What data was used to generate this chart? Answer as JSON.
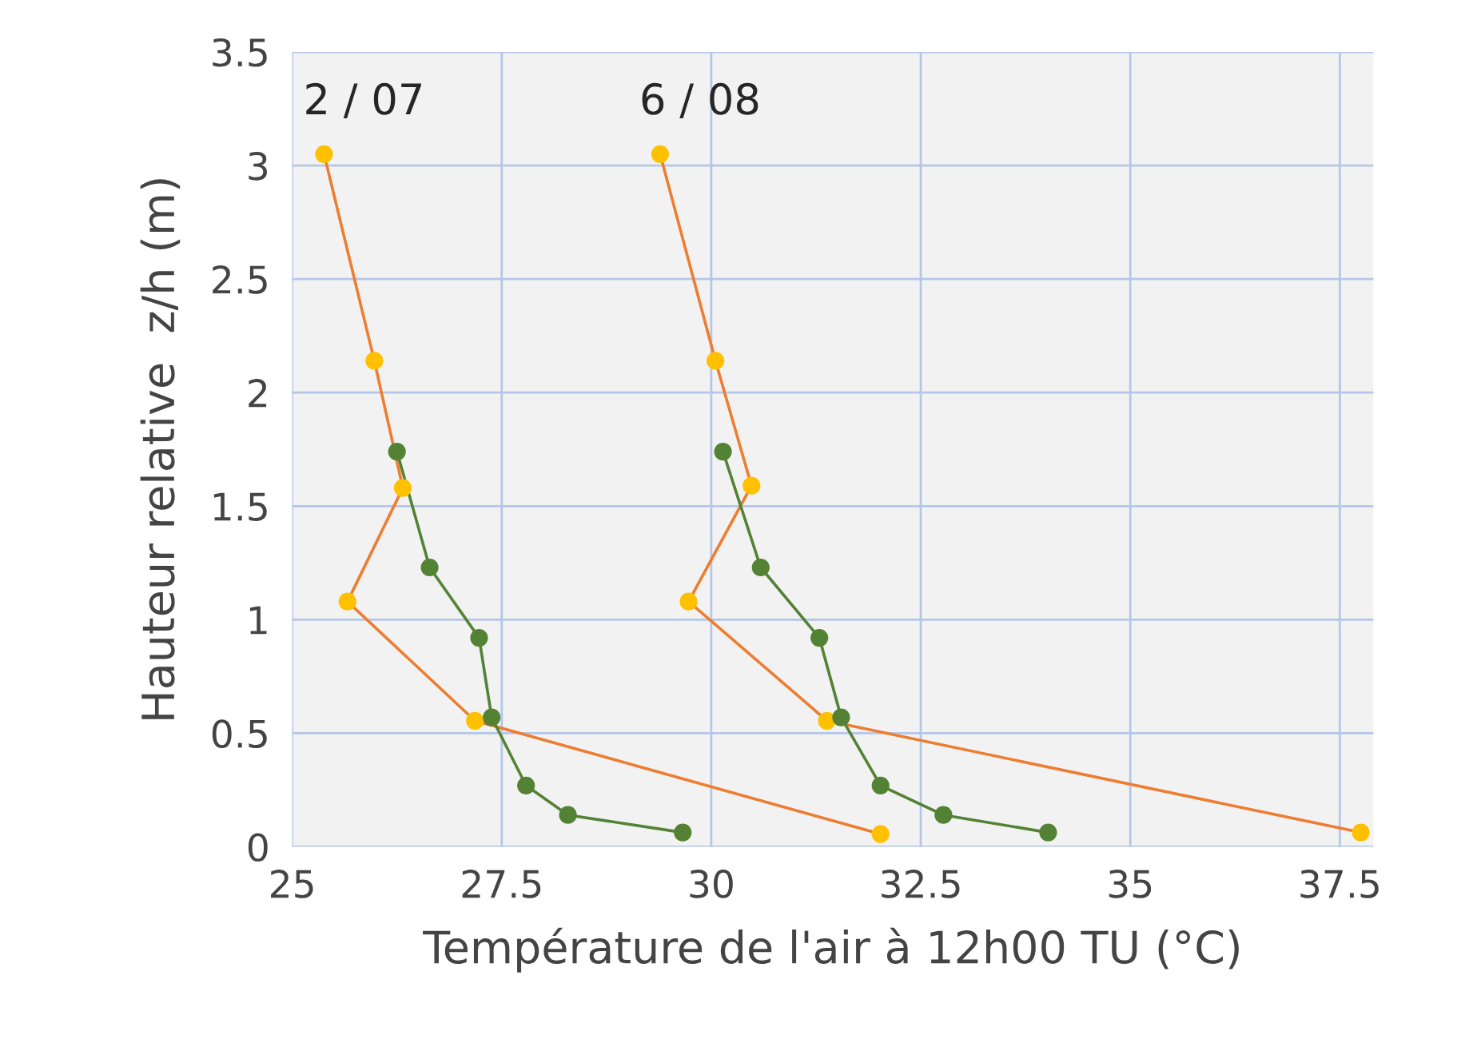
{
  "chart_data": {
    "type": "line",
    "xlabel": "Température de l'air à 12h00 TU (°C)",
    "ylabel": "Hauteur relative  z/h (m)",
    "xlim": [
      25,
      37.9
    ],
    "xticks": [
      25,
      27.5,
      30,
      32.5,
      35,
      37.5
    ],
    "ylim": [
      0,
      3.5
    ],
    "yticks": [
      0,
      0.5,
      1,
      1.5,
      2,
      2.5,
      3,
      3.5
    ],
    "grid": true,
    "marker": "circle",
    "series": [
      {
        "color": "#ed7d31",
        "colors": [
          "#ffc000",
          "#ffc000",
          "#ffc000",
          "#ffc000",
          "#ffc000",
          "#ffc000"
        ],
        "x": [
          25.38,
          25.98,
          26.32,
          25.66,
          27.18,
          32.02
        ],
        "values": [
          3.05,
          2.14,
          1.58,
          1.08,
          0.555,
          0.056
        ]
      },
      {
        "color": "#548235",
        "x": [
          26.25,
          26.64,
          27.23,
          27.38,
          27.79,
          28.29,
          29.66
        ],
        "values": [
          1.74,
          1.23,
          0.92,
          0.57,
          0.27,
          0.14,
          0.063
        ]
      },
      {
        "color": "#ed7d31",
        "colors": [
          "#ffc000",
          "#ffc000",
          "#ffc000",
          "#ffc000",
          "#ffc000",
          "#ffc000"
        ],
        "x": [
          29.39,
          30.05,
          30.48,
          29.73,
          31.38,
          37.75
        ],
        "values": [
          3.05,
          2.14,
          1.59,
          1.08,
          0.555,
          0.063
        ]
      },
      {
        "color": "#548235",
        "x": [
          30.14,
          30.59,
          31.29,
          31.55,
          32.02,
          32.77,
          34.02
        ],
        "values": [
          1.74,
          1.23,
          0.92,
          0.57,
          0.27,
          0.14,
          0.063
        ]
      }
    ],
    "annotations": [
      "2 / 07",
      "6 / 08"
    ]
  }
}
